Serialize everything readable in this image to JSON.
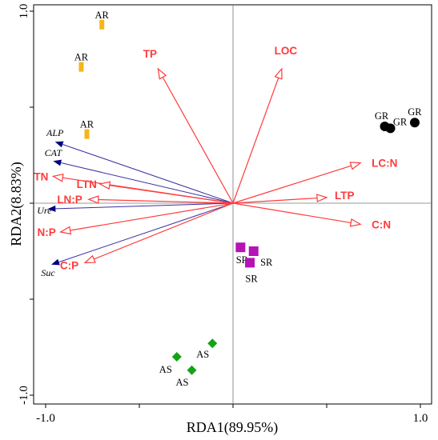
{
  "chart_data": {
    "type": "scatter",
    "xlabel": "RDA1(89.95%)",
    "ylabel": "RDA2(8.83%)",
    "xlim": [
      -1.05,
      1.05
    ],
    "ylim": [
      -1.05,
      1.05
    ],
    "x_ticks": [
      {
        "value": -1.0,
        "label": "-1.0"
      },
      {
        "value": 1.0,
        "label": "1.0"
      }
    ],
    "y_ticks": [
      {
        "value": 1.0,
        "label": "1.0"
      },
      {
        "value": -1.0,
        "label": "-1.0"
      }
    ],
    "colors": {
      "AR": "#f5b51c",
      "GR": "#000000",
      "SR": "#b513b5",
      "AS": "#14a314",
      "env_arrow": "#ff3b3b",
      "enzyme_arrow": "#3a2fa0"
    },
    "groups": [
      {
        "name": "AR",
        "shape": "rect",
        "points": [
          {
            "x": -0.7,
            "y": 0.93,
            "label": "AR"
          },
          {
            "x": -0.81,
            "y": 0.71,
            "label": "AR"
          },
          {
            "x": -0.78,
            "y": 0.36,
            "label": "AR"
          }
        ]
      },
      {
        "name": "GR",
        "shape": "circle",
        "points": [
          {
            "x": 0.81,
            "y": 0.4,
            "label": "GR"
          },
          {
            "x": 0.84,
            "y": 0.39,
            "label": "GR"
          },
          {
            "x": 0.97,
            "y": 0.42,
            "label": "GR"
          }
        ]
      },
      {
        "name": "SR",
        "shape": "square",
        "points": [
          {
            "x": 0.04,
            "y": -0.23,
            "label": "SR"
          },
          {
            "x": 0.11,
            "y": -0.25,
            "label": "SR"
          },
          {
            "x": 0.09,
            "y": -0.31,
            "label": "SR"
          }
        ]
      },
      {
        "name": "AS",
        "shape": "diamond",
        "points": [
          {
            "x": -0.3,
            "y": -0.8,
            "label": "AS"
          },
          {
            "x": -0.22,
            "y": -0.87,
            "label": "AS"
          },
          {
            "x": -0.11,
            "y": -0.73,
            "label": "AS"
          }
        ]
      }
    ],
    "env_vectors": [
      {
        "name": "TP",
        "x": -0.4,
        "y": 0.7
      },
      {
        "name": "LOC",
        "x": 0.26,
        "y": 0.7
      },
      {
        "name": "LC:N",
        "x": 0.68,
        "y": 0.21
      },
      {
        "name": "LTP",
        "x": 0.5,
        "y": 0.03
      },
      {
        "name": "C:N",
        "x": 0.68,
        "y": -0.11
      },
      {
        "name": "TN",
        "x": -0.96,
        "y": 0.14
      },
      {
        "name": "LTN",
        "x": -0.71,
        "y": 0.1
      },
      {
        "name": "LN:P",
        "x": -0.77,
        "y": 0.02
      },
      {
        "name": "N:P",
        "x": -0.92,
        "y": -0.15
      },
      {
        "name": "C:P",
        "x": -0.79,
        "y": -0.31
      }
    ],
    "enzyme_vectors": [
      {
        "name": "ALP",
        "x": -0.95,
        "y": 0.32
      },
      {
        "name": "CAT",
        "x": -0.96,
        "y": 0.22
      },
      {
        "name": "Ure",
        "x": -0.99,
        "y": -0.03
      },
      {
        "name": "Suc",
        "x": -0.97,
        "y": -0.32
      }
    ]
  }
}
